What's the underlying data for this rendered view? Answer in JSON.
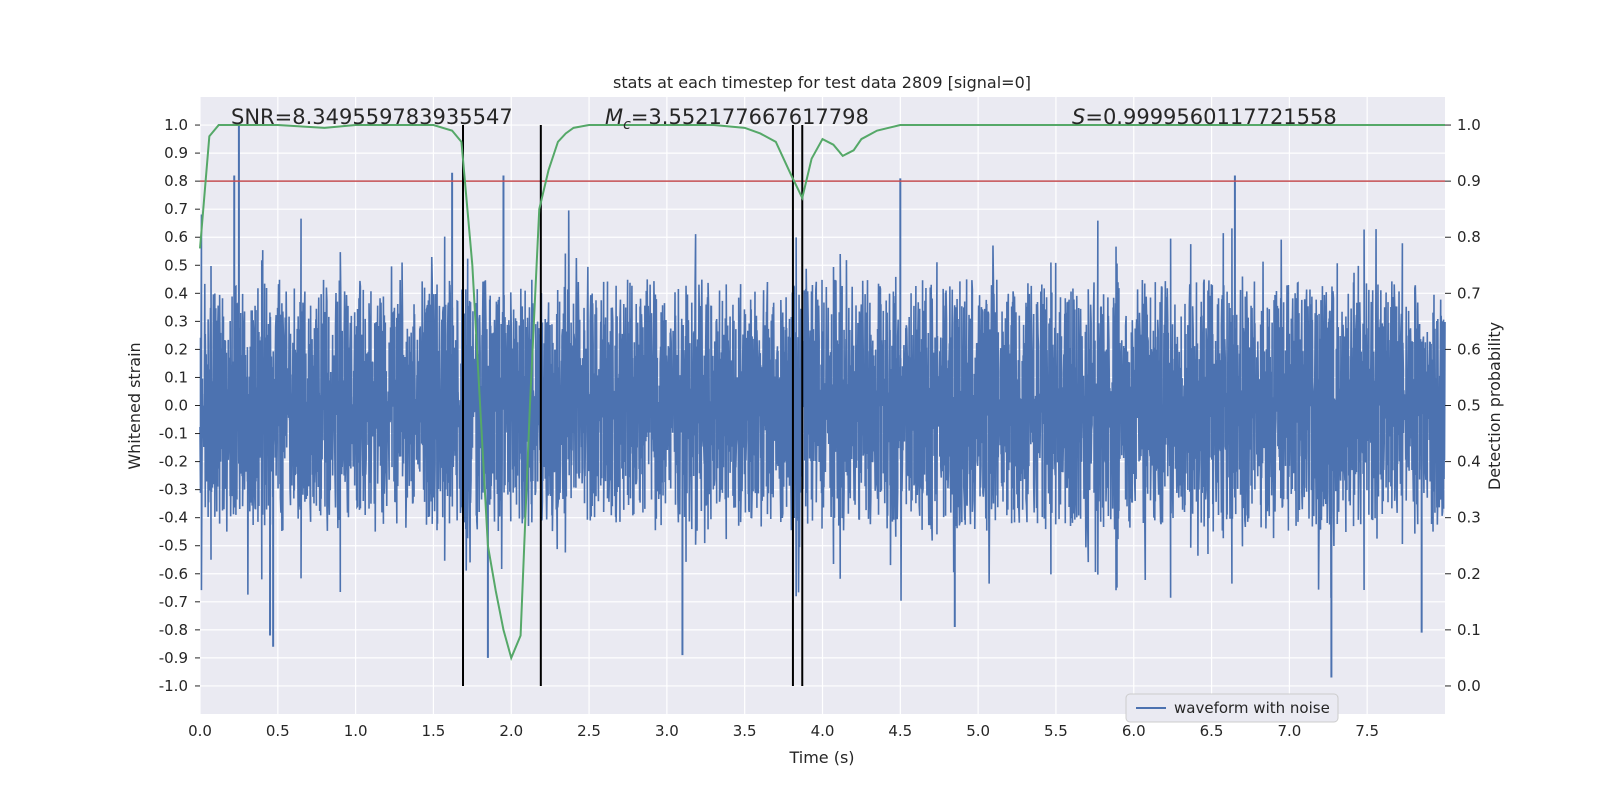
{
  "chart_data": {
    "type": "line",
    "title": "stats at each timestep for test data 2809 [signal=0]",
    "xlabel": "Time (s)",
    "ylabel_left": "Whitened strain",
    "ylabel_right": "Detection probability",
    "xlim": [
      0.0,
      8.0
    ],
    "ylim_left": [
      -1.1,
      1.1
    ],
    "ylim_right": [
      -0.05,
      1.05
    ],
    "xticks": [
      "0.0",
      "0.5",
      "1.0",
      "1.5",
      "2.0",
      "2.5",
      "3.0",
      "3.5",
      "4.0",
      "4.5",
      "5.0",
      "5.5",
      "6.0",
      "6.5",
      "7.0",
      "7.5"
    ],
    "yticks_left": [
      "1.0",
      "0.9",
      "0.8",
      "0.7",
      "0.6",
      "0.5",
      "0.4",
      "0.3",
      "0.2",
      "0.1",
      "0.0",
      "-0.1",
      "-0.2",
      "-0.3",
      "-0.4",
      "-0.5",
      "-0.6",
      "-0.7",
      "-0.8",
      "-0.9",
      "-1.0"
    ],
    "yticks_right": [
      "1.0",
      "0.9",
      "0.8",
      "0.7",
      "0.6",
      "0.5",
      "0.4",
      "0.3",
      "0.2",
      "0.1",
      "0.0"
    ],
    "grid": true,
    "legend_position": "lower-right",
    "annotations": {
      "snr": "SNR=8.349559783935547",
      "mc_symbol": "M",
      "mc_sub": "c",
      "mc_value": "=3.552177667617798",
      "s_symbol": "S",
      "s_value": "=0.9999560117721558"
    },
    "series": [
      {
        "name": "waveform with noise",
        "axis": "left",
        "color": "#4c72b0",
        "style": "dense noise trace",
        "typical_range": [
          -0.45,
          0.45
        ],
        "peaks": [
          {
            "x": 0.25,
            "y": 1.0
          },
          {
            "x": 0.22,
            "y": 0.82
          },
          {
            "x": 1.62,
            "y": 0.83
          },
          {
            "x": 1.95,
            "y": 0.82
          },
          {
            "x": 4.5,
            "y": 0.81
          },
          {
            "x": 6.65,
            "y": 0.82
          },
          {
            "x": 0.45,
            "y": -0.82
          },
          {
            "x": 0.47,
            "y": -0.86
          },
          {
            "x": 1.85,
            "y": -0.9
          },
          {
            "x": 3.1,
            "y": -0.89
          },
          {
            "x": 4.85,
            "y": -0.79
          },
          {
            "x": 7.27,
            "y": -0.97
          },
          {
            "x": 7.85,
            "y": -0.81
          }
        ]
      },
      {
        "name": "detection probability",
        "axis": "right",
        "color": "#55a868",
        "x": [
          0.0,
          0.06,
          0.12,
          0.5,
          0.8,
          1.0,
          1.5,
          1.62,
          1.68,
          1.75,
          1.8,
          1.85,
          1.9,
          1.95,
          2.0,
          2.06,
          2.12,
          2.18,
          2.24,
          2.3,
          2.35,
          2.4,
          2.5,
          3.0,
          3.3,
          3.5,
          3.6,
          3.7,
          3.75,
          3.8,
          3.87,
          3.93,
          4.0,
          4.07,
          4.13,
          4.2,
          4.25,
          4.35,
          4.5,
          6.0,
          8.0
        ],
        "y": [
          0.78,
          0.98,
          1.0,
          1.0,
          0.995,
          1.0,
          1.0,
          0.99,
          0.97,
          0.75,
          0.5,
          0.25,
          0.17,
          0.1,
          0.05,
          0.09,
          0.5,
          0.85,
          0.92,
          0.97,
          0.985,
          0.995,
          1.0,
          1.0,
          1.0,
          0.995,
          0.985,
          0.97,
          0.94,
          0.91,
          0.87,
          0.94,
          0.975,
          0.965,
          0.945,
          0.955,
          0.975,
          0.99,
          1.0,
          1.0,
          1.0
        ]
      }
    ],
    "threshold_line": {
      "axis": "left",
      "y": 0.8,
      "color": "#c44e52"
    },
    "vertical_markers": [
      1.69,
      2.19,
      3.81,
      3.87
    ],
    "vertical_marker_range_right": [
      0.0,
      1.0
    ]
  }
}
